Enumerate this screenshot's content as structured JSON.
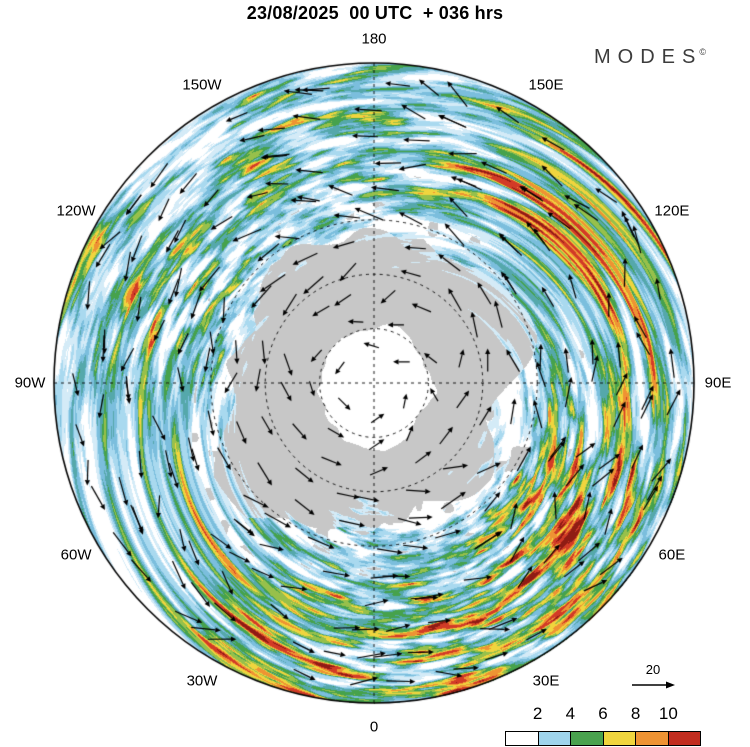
{
  "header": {
    "title": "23/08/2025  00 UTC  + 036 hrs"
  },
  "branding": {
    "logo_text": "MODES",
    "logo_sup": "©"
  },
  "map": {
    "longitude_labels": [
      {
        "text": "180",
        "deg": 0
      },
      {
        "text": "150E",
        "deg": 30
      },
      {
        "text": "120E",
        "deg": 60
      },
      {
        "text": "90E",
        "deg": 90
      },
      {
        "text": "60E",
        "deg": 120
      },
      {
        "text": "30E",
        "deg": 150
      },
      {
        "text": "0",
        "deg": 180
      },
      {
        "text": "30W",
        "deg": 210
      },
      {
        "text": "60W",
        "deg": 240
      },
      {
        "text": "90W",
        "deg": 270
      },
      {
        "text": "120W",
        "deg": 300
      },
      {
        "text": "150W",
        "deg": 330
      }
    ],
    "land_color": "#c7c7c7",
    "ice_color": "#ffffff",
    "ocean_color": "#ffffff",
    "grid_color": "#000000",
    "arrow_color": "#000000",
    "field_palette": {
      "thresholds": [
        2,
        3,
        4,
        4.9,
        5.7,
        6.5,
        7.3,
        8.1,
        9,
        10.2
      ],
      "colors": [
        "#ffffff",
        "#d4ebf7",
        "#a9d9ef",
        "#7bbedd",
        "#55a8ab",
        "#46a24c",
        "#97c04b",
        "#f0d53e",
        "#ee9333",
        "#d23b27",
        "#8f1c14"
      ]
    }
  },
  "legend": {
    "reference_arrow_label": "20",
    "colorbar": {
      "tick_labels": [
        "2",
        "4",
        "6",
        "8",
        "10"
      ],
      "cell_colors": [
        "#ffffff",
        "#9fd4ec",
        "#4aa24e",
        "#f0d53e",
        "#ee9333",
        "#c22d1f"
      ]
    }
  }
}
